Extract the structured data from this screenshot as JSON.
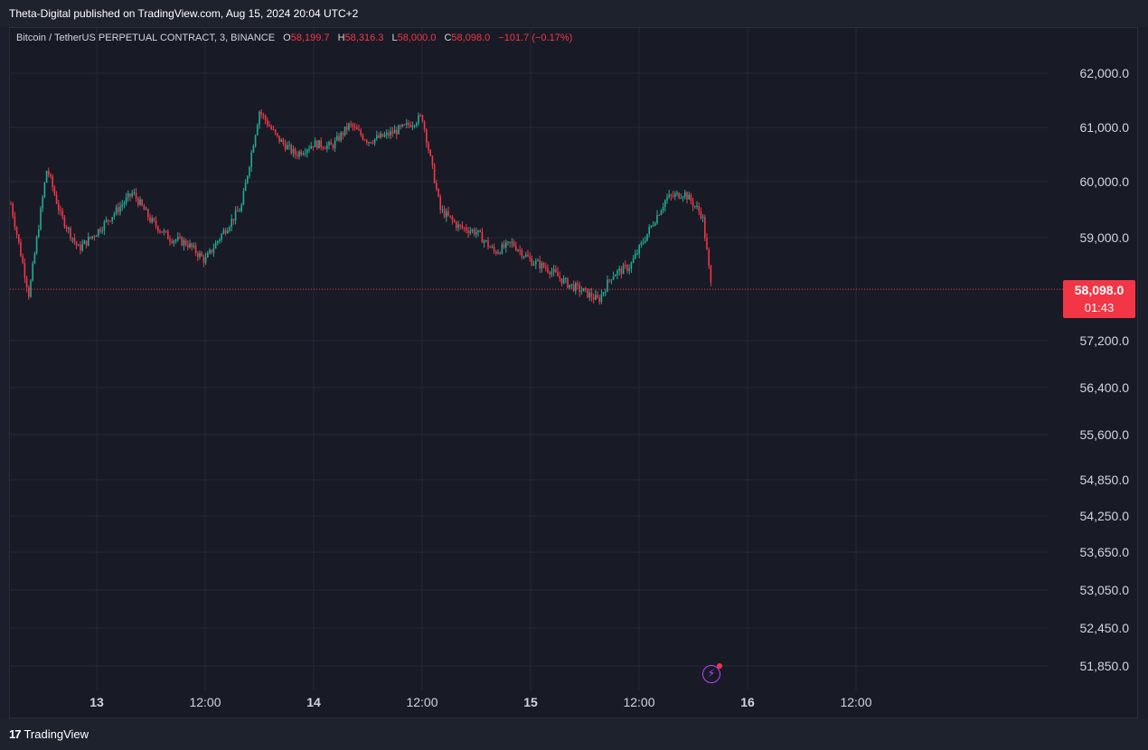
{
  "header": {
    "published_by": "Theta-Digital published on TradingView.com, Aug 15, 2024 20:04 UTC+2"
  },
  "legend": {
    "symbol": "Bitcoin / TetherUS PERPETUAL CONTRACT, 3, BINANCE",
    "open_label": "O",
    "open": "58,199.7",
    "high_label": "H",
    "high": "58,316.3",
    "low_label": "L",
    "low": "58,000.0",
    "close_label": "C",
    "close": "58,098.0",
    "change": "−101.7 (−0.17%)"
  },
  "price_tag": {
    "price": "58,098.0",
    "countdown": "01:43"
  },
  "footer": {
    "brand_mark": "17",
    "brand": "TradingView"
  },
  "colors": {
    "up": "#22ab94",
    "down": "#f23645",
    "background": "#181b26",
    "grid": "#262a36",
    "text": "#d1d4dc"
  },
  "icons": {
    "alert": "lightning-bolt-icon"
  },
  "chart_data": {
    "type": "candlestick",
    "timeframe": "3",
    "y_ticks": [
      62000,
      61000,
      60000,
      59000,
      57200,
      56400,
      55600,
      54850,
      54250,
      53650,
      53050,
      52450,
      51850
    ],
    "y_tick_labels": [
      "62,000.0",
      "61,000.0",
      "60,000.0",
      "59,000.0",
      "57,200.0",
      "56,400.0",
      "55,600.0",
      "54,850.0",
      "54,250.0",
      "53,650.0",
      "53,050.0",
      "52,450.0",
      "51,850.0"
    ],
    "x_ticks": [
      "2024-08-13T00:00",
      "2024-08-13T12:00",
      "2024-08-14T00:00",
      "2024-08-14T12:00",
      "2024-08-15T00:00",
      "2024-08-15T12:00",
      "2024-08-16T00:00",
      "2024-08-16T12:00"
    ],
    "x_tick_labels": [
      "13",
      "12:00",
      "14",
      "12:00",
      "15",
      "12:00",
      "16",
      "12:00"
    ],
    "last_price": 58098.0,
    "close_path": {
      "x": [
        "2024-08-12T14:30",
        "2024-08-12T16:30",
        "2024-08-12T18:30",
        "2024-08-12T20:00",
        "2024-08-12T22:00",
        "2024-08-13T00:00",
        "2024-08-13T02:00",
        "2024-08-13T04:00",
        "2024-08-13T06:00",
        "2024-08-13T08:00",
        "2024-08-13T10:00",
        "2024-08-13T12:00",
        "2024-08-13T14:00",
        "2024-08-13T16:00",
        "2024-08-13T18:00",
        "2024-08-13T20:00",
        "2024-08-13T22:00",
        "2024-08-14T00:00",
        "2024-08-14T02:00",
        "2024-08-14T04:00",
        "2024-08-14T06:00",
        "2024-08-14T08:00",
        "2024-08-14T10:00",
        "2024-08-14T12:00",
        "2024-08-14T14:00",
        "2024-08-14T16:00",
        "2024-08-14T18:00",
        "2024-08-14T20:00",
        "2024-08-14T22:00",
        "2024-08-15T00:00",
        "2024-08-15T02:00",
        "2024-08-15T04:00",
        "2024-08-15T06:00",
        "2024-08-15T07:30",
        "2024-08-15T09:00",
        "2024-08-15T11:00",
        "2024-08-15T13:00",
        "2024-08-15T15:00",
        "2024-08-15T17:00",
        "2024-08-15T19:00",
        "2024-08-15T20:00"
      ],
      "y": [
        59600,
        58000,
        60250,
        59400,
        58800,
        59100,
        59450,
        59800,
        59300,
        59000,
        58900,
        58600,
        59100,
        59550,
        61300,
        60800,
        60500,
        60700,
        60650,
        61050,
        60750,
        60850,
        61000,
        61200,
        59500,
        59200,
        59100,
        58750,
        58900,
        58600,
        58450,
        58200,
        58050,
        57900,
        58350,
        58500,
        59100,
        59700,
        59800,
        59400,
        58098
      ]
    }
  }
}
